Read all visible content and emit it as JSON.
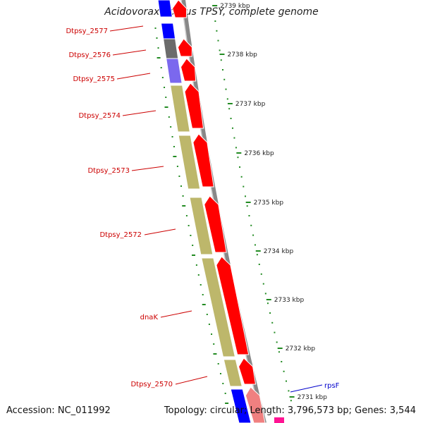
{
  "title": "Acidovorax ebreus TPSY, complete genome",
  "footer": {
    "accession": "Accession: NC_011992",
    "summary": "Topology: circular; Length: 3,796,573 bp; Genes: 3,544"
  },
  "colors": {
    "forward_cds": "#ff0000",
    "reverse_cds": "#bdb76b",
    "blue": "#0000ff",
    "dark": "#6b6b6b",
    "purple": "#7b68ee",
    "pink_light": "#f08080",
    "magenta": "#ff1493",
    "label_red": "#cc0000",
    "label_blue": "#0000cc",
    "tick_green": "#228b22",
    "backbone": "#808080"
  },
  "scale_labels": [
    "2739 kbp",
    "2738 kbp",
    "2737 kbp",
    "2736 kbp",
    "2735 kbp",
    "2734 kbp",
    "2733 kbp",
    "2732 kbp",
    "2731 kbp"
  ],
  "gene_labels": [
    {
      "text": "Dtpsy_2577",
      "color": "red"
    },
    {
      "text": "Dtpsy_2576",
      "color": "red"
    },
    {
      "text": "Dtpsy_2575",
      "color": "red"
    },
    {
      "text": "Dtpsy_2574",
      "color": "red"
    },
    {
      "text": "Dtpsy_2573",
      "color": "red"
    },
    {
      "text": "Dtpsy_2572",
      "color": "red"
    },
    {
      "text": "dnaK",
      "color": "red"
    },
    {
      "text": "Dtpsy_2570",
      "color": "red"
    },
    {
      "text": "rpsF",
      "color": "blue"
    }
  ]
}
